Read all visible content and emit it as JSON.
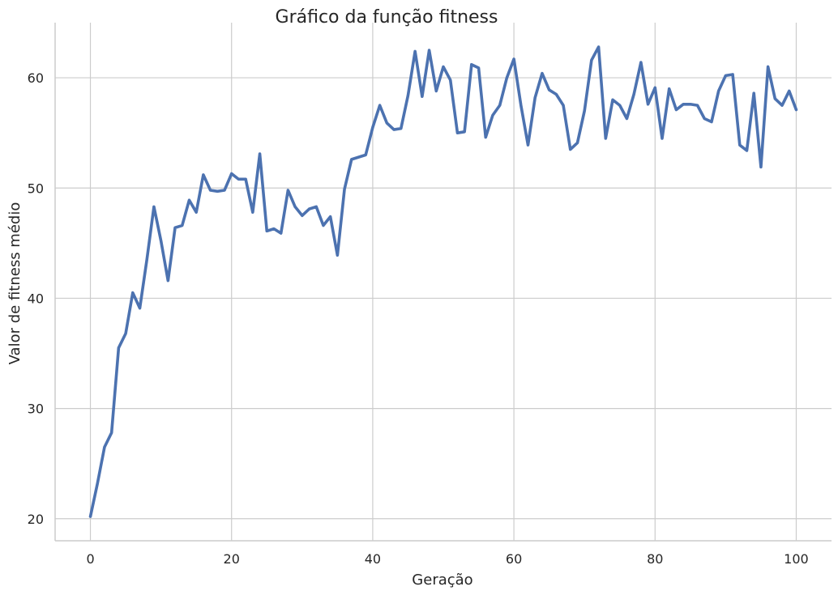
{
  "chart_data": {
    "type": "line",
    "title": "Gráfico da função fitness",
    "xlabel": "Geração",
    "ylabel": "Valor de fitness médio",
    "xlim": [
      -5,
      105
    ],
    "ylim": [
      18,
      65
    ],
    "xticks": [
      0,
      20,
      40,
      60,
      80,
      100
    ],
    "yticks": [
      20,
      30,
      40,
      50,
      60
    ],
    "grid": true,
    "line_color": "#4c72b0",
    "series": [
      {
        "values": [
          20.2,
          23.2,
          26.5,
          27.8,
          35.5,
          36.8,
          40.5,
          39.1,
          43.5,
          48.3,
          45.2,
          41.6,
          46.4,
          46.6,
          48.9,
          47.8,
          51.2,
          49.8,
          49.7,
          49.8,
          51.3,
          50.8,
          50.8,
          47.8,
          53.1,
          46.1,
          46.3,
          45.9,
          49.8,
          48.3,
          47.5,
          48.1,
          48.3,
          46.6,
          47.4,
          43.9,
          49.9,
          52.6,
          52.8,
          53.0,
          55.5,
          57.5,
          55.9,
          55.3,
          55.4,
          58.4,
          62.4,
          58.3,
          62.5,
          58.8,
          61.0,
          59.8,
          55.0,
          55.1,
          61.2,
          60.9,
          54.6,
          56.6,
          57.5,
          60.0,
          61.7,
          57.5,
          53.9,
          58.2,
          60.4,
          58.9,
          58.5,
          57.5,
          53.5,
          54.1,
          57.0,
          61.6,
          62.8,
          54.5,
          58.0,
          57.5,
          56.3,
          58.5,
          61.4,
          57.6,
          59.1,
          54.5,
          59.0,
          57.1,
          57.6,
          57.6,
          57.5,
          56.3,
          56.0,
          58.8,
          60.2,
          60.3,
          53.9,
          53.4,
          58.6,
          51.9,
          61.0,
          58.1,
          57.5,
          58.8,
          57.1
        ]
      }
    ]
  }
}
